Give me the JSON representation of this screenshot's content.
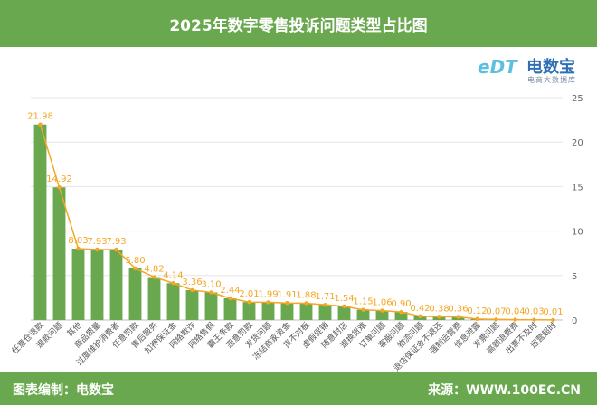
{
  "title": "2025年数字零售投诉问题类型占比图",
  "footer": {
    "left": "图表编制：电数宝",
    "right": "来源：WWW.100EC.CN"
  },
  "logo": {
    "mark": "eDT",
    "name": "电数宝",
    "sub": "电商大数据库"
  },
  "chart_data": {
    "type": "bar",
    "categories": [
      "任意仓退款",
      "退款问题",
      "其他",
      "商品质量",
      "过度维护消费者",
      "任意罚款",
      "售后服务",
      "扣押保证金",
      "网络欺诈",
      "网络售假",
      "霸王条款",
      "恶意罚款",
      "发货问题",
      "冻结商家资金",
      "货不对板",
      "虚假促销",
      "随意封店",
      "退换货难",
      "订单问题",
      "客服问题",
      "物流问题",
      "退店保证金不退还",
      "强制运营费",
      "信息泄露",
      "发票问题",
      "高额退费费",
      "出票不及时",
      "运营超时"
    ],
    "values": [
      21.98,
      14.92,
      8.03,
      7.93,
      7.93,
      5.8,
      4.82,
      4.14,
      3.36,
      3.1,
      2.44,
      2.01,
      1.99,
      1.91,
      1.88,
      1.71,
      1.54,
      1.15,
      1.06,
      0.9,
      0.42,
      0.38,
      0.36,
      0.12,
      0.07,
      0.04,
      0.03,
      0.01
    ],
    "labels": [
      "21.98",
      "14.92",
      "8.03",
      "7.93",
      "7.93",
      "5.80",
      "4.82",
      "4.14",
      "3.36",
      "3.10",
      "2.44",
      "2.01",
      "1.99",
      "1.91",
      "1.88",
      "1.71",
      "1.54",
      "1.15",
      "1.06",
      "0.90",
      "0.42",
      "0.38",
      "0.36",
      "0.12",
      "0.07",
      "0.04",
      "0.03",
      "0.01"
    ],
    "ylim": [
      0,
      25
    ],
    "yticks": [
      0,
      5,
      10,
      15,
      20,
      25
    ],
    "grid": true,
    "axis_side": "right",
    "colors": {
      "bar": "#6aa84f",
      "line": "#f5a623",
      "label": "#f5a623"
    }
  }
}
